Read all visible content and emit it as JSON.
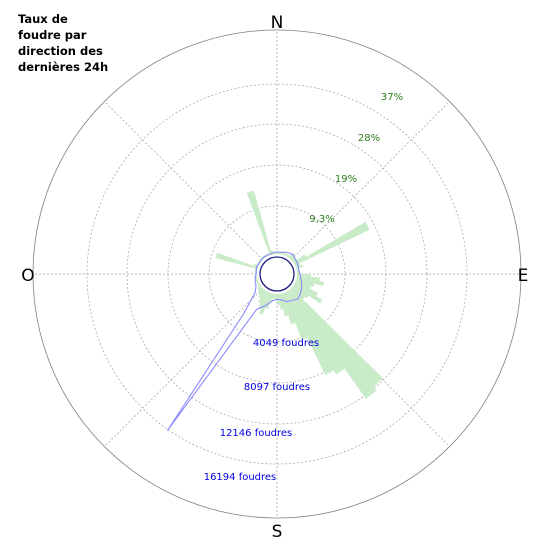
{
  "title_lines": [
    "Taux  de",
    "foudre par",
    "direction des",
    "dernières  24h"
  ],
  "compass": {
    "north": "N",
    "east": "E",
    "south": "S",
    "west": "O"
  },
  "colors": {
    "wedge_fill": "#c8ebc8",
    "count_line": "#8c8cff",
    "inner_circle": "#1a1a80",
    "grid": "#a0a0a0",
    "pct_text": "#2e7d1e",
    "count_text": "#0000e0"
  },
  "chart_data": {
    "type": "polar-bar",
    "title": "Taux de foudre par direction des dernières 24h",
    "orientation": "clockwise from north",
    "percent_rings": {
      "values": [
        9.3,
        19,
        28,
        37
      ],
      "labels": [
        "9,3%",
        "19%",
        "28%",
        "37%"
      ]
    },
    "count_rings": {
      "values": [
        4049,
        8097,
        12146,
        16194
      ],
      "labels": [
        "4049 foudres",
        "8097 foudres",
        "12146 foudres",
        "16194 foudres"
      ]
    },
    "percent_series": {
      "name": "Taux de foudre (%)",
      "bearing_deg": [
        0,
        5,
        10,
        15,
        20,
        25,
        30,
        35,
        40,
        45,
        50,
        55,
        60,
        65,
        70,
        75,
        80,
        85,
        90,
        95,
        100,
        105,
        110,
        115,
        120,
        125,
        130,
        135,
        140,
        145,
        150,
        155,
        160,
        165,
        170,
        175,
        180,
        185,
        190,
        195,
        200,
        205,
        210,
        215,
        220,
        225,
        230,
        235,
        240,
        245,
        250,
        255,
        260,
        265,
        270,
        275,
        280,
        285,
        290,
        295,
        300,
        305,
        310,
        315,
        320,
        325,
        330,
        335,
        340,
        345,
        350,
        355
      ],
      "values": [
        0.5,
        0.5,
        0.5,
        0.5,
        0.5,
        0.5,
        0.5,
        0.5,
        1.0,
        1.5,
        1.0,
        1.0,
        3.0,
        18.0,
        1.0,
        1.5,
        0.5,
        0.5,
        0.5,
        3.0,
        5.0,
        6.0,
        4.0,
        3.5,
        5.5,
        7.0,
        4.0,
        3.5,
        28.0,
        29.0,
        21.0,
        20.0,
        11.0,
        7.0,
        5.0,
        3.5,
        2.5,
        1.5,
        1.0,
        2.0,
        3.5,
        5.0,
        4.0,
        3.0,
        2.0,
        1.5,
        1.0,
        1.0,
        0.5,
        0.5,
        0.5,
        0.5,
        0.5,
        0.5,
        0.5,
        0.5,
        0.5,
        0.5,
        9.5,
        1.0,
        0.5,
        0.5,
        0.5,
        0.5,
        0.5,
        0.5,
        0.5,
        0.5,
        0.5,
        14.5,
        1.0,
        0.5
      ]
    },
    "count_series": {
      "name": "Nombre de foudres",
      "bearing_deg": [
        0,
        10,
        20,
        30,
        40,
        50,
        60,
        70,
        80,
        90,
        100,
        110,
        120,
        130,
        140,
        150,
        160,
        170,
        180,
        190,
        200,
        210,
        215,
        220,
        230,
        240,
        250,
        260,
        270,
        280,
        290,
        300,
        310,
        320,
        330,
        340,
        350
      ],
      "values": [
        200,
        200,
        300,
        400,
        500,
        350,
        300,
        250,
        200,
        300,
        400,
        600,
        800,
        1000,
        1200,
        1000,
        900,
        600,
        500,
        700,
        1300,
        2000,
        16300,
        3000,
        800,
        400,
        300,
        200,
        100,
        100,
        150,
        100,
        100,
        150,
        100,
        100,
        150
      ]
    }
  }
}
